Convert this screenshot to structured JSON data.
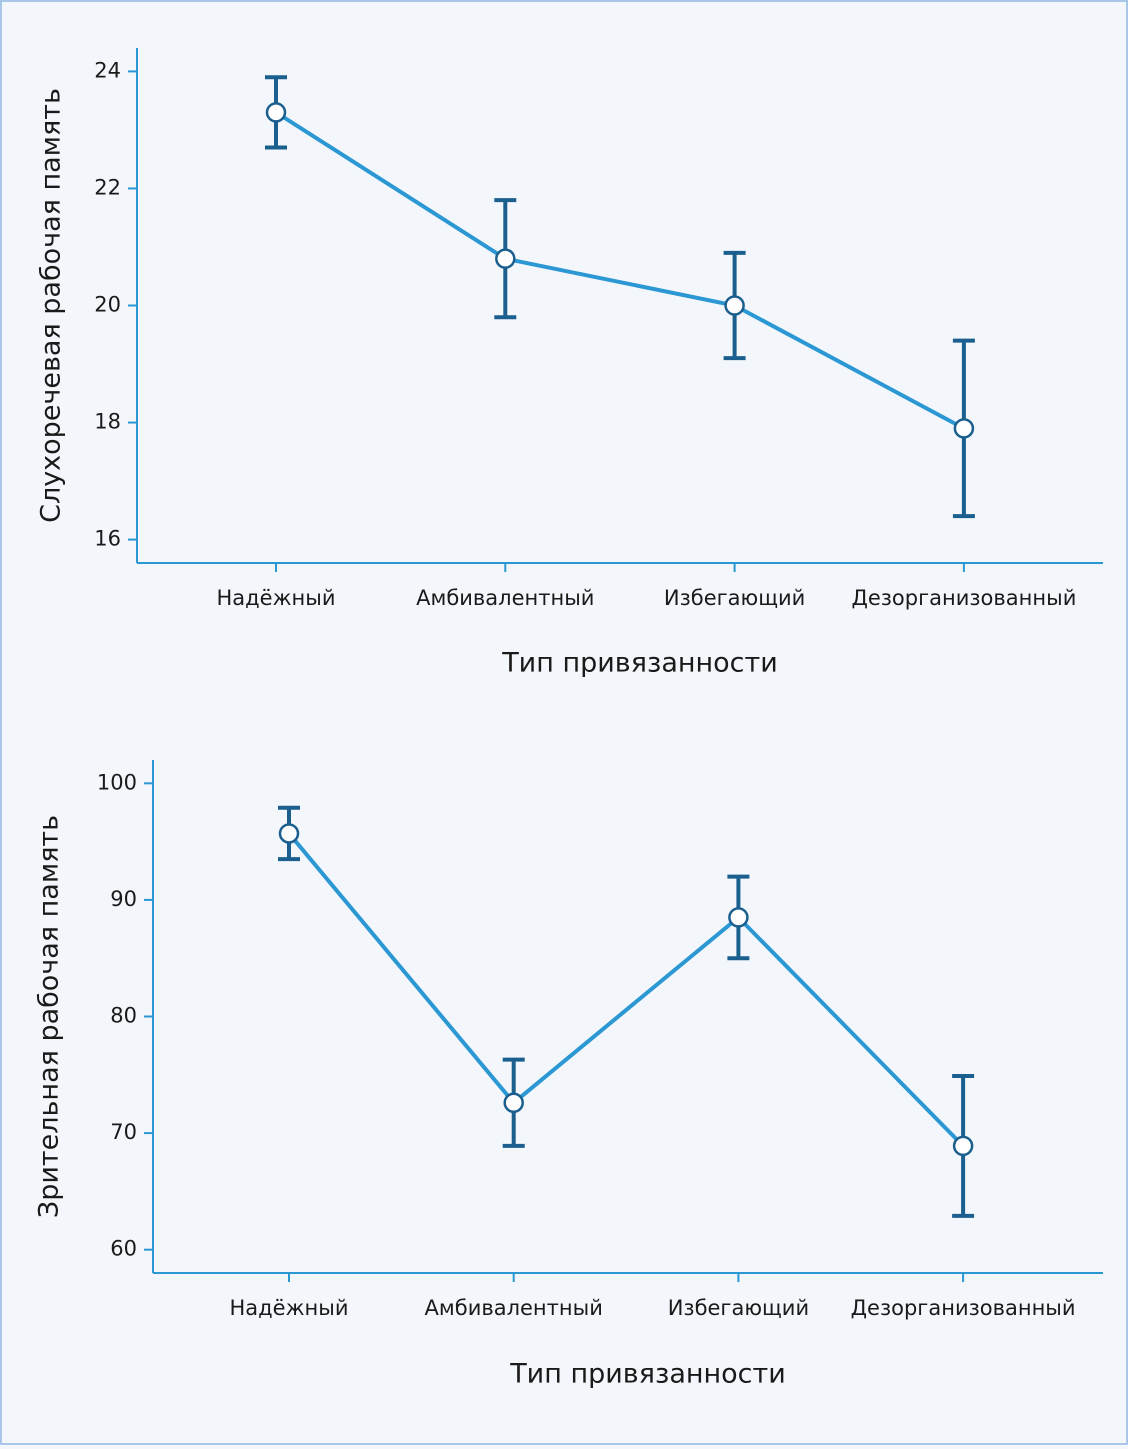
{
  "chart_data": [
    {
      "type": "line",
      "categories": [
        "Надёжный",
        "Амбивалентный",
        "Избегающий",
        "Дезорганизованный"
      ],
      "values": [
        23.3,
        20.8,
        20.0,
        17.9
      ],
      "errors": [
        0.6,
        1.0,
        0.9,
        1.5
      ],
      "color": "#2b97d3",
      "error_color": "#1b5f8e",
      "x_label": "Тип привязанности",
      "y_label": "Слухоречевая рабочая память",
      "ylim": [
        15.6,
        24.4
      ],
      "yticks": [
        16,
        18,
        20,
        22,
        24
      ]
    },
    {
      "type": "line",
      "categories": [
        "Надёжный",
        "Амбивалентный",
        "Избегающий",
        "Дезорганизованный"
      ],
      "values": [
        95.7,
        72.6,
        88.5,
        68.9
      ],
      "errors": [
        2.2,
        3.7,
        3.5,
        6.0
      ],
      "color": "#2b97d3",
      "error_color": "#1b5f8e",
      "x_label": "Тип привязанности",
      "y_label": "Зрительная рабочая память",
      "ylim": [
        58,
        102
      ],
      "yticks": [
        60,
        70,
        80,
        90,
        100
      ]
    }
  ]
}
